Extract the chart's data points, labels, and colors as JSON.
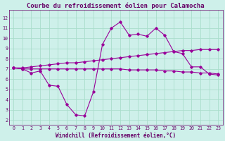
{
  "title": "Courbe du refroidissement éolien pour Calamocha",
  "xlabel": "Windchill (Refroidissement éolien,°C)",
  "bg_color": "#cef0ea",
  "grid_color": "#aaddcc",
  "line_color": "#990099",
  "x_ticks": [
    0,
    1,
    2,
    3,
    4,
    5,
    6,
    7,
    8,
    9,
    10,
    11,
    12,
    13,
    14,
    15,
    16,
    17,
    18,
    19,
    20,
    21,
    22,
    23
  ],
  "y_ticks": [
    2,
    3,
    4,
    5,
    6,
    7,
    8,
    9,
    10,
    11,
    12
  ],
  "ylim": [
    1.5,
    12.8
  ],
  "xlim": [
    -0.5,
    23.5
  ],
  "series1_x": [
    0,
    1,
    2,
    3,
    4,
    5,
    6,
    7,
    8,
    9,
    10,
    11,
    12,
    13,
    14,
    15,
    16,
    17,
    18,
    19,
    20,
    21,
    22,
    23
  ],
  "series1_y": [
    7.1,
    7.0,
    6.6,
    6.8,
    5.4,
    5.3,
    3.5,
    2.5,
    2.4,
    4.8,
    9.4,
    11.0,
    11.6,
    10.3,
    10.4,
    10.2,
    11.0,
    10.3,
    8.7,
    8.5,
    7.2,
    7.2,
    6.5,
    6.4
  ],
  "series2_x": [
    0,
    1,
    2,
    3,
    4,
    5,
    6,
    7,
    8,
    9,
    10,
    11,
    12,
    13,
    14,
    15,
    16,
    17,
    18,
    19,
    20,
    21,
    22,
    23
  ],
  "series2_y": [
    7.1,
    7.0,
    7.0,
    7.0,
    7.0,
    7.0,
    7.0,
    7.0,
    7.0,
    7.0,
    7.0,
    7.0,
    7.0,
    6.9,
    6.9,
    6.9,
    6.9,
    6.8,
    6.8,
    6.7,
    6.7,
    6.6,
    6.6,
    6.5
  ],
  "series3_x": [
    0,
    1,
    2,
    3,
    4,
    5,
    6,
    7,
    8,
    9,
    10,
    11,
    12,
    13,
    14,
    15,
    16,
    17,
    18,
    19,
    20,
    21,
    22,
    23
  ],
  "series3_y": [
    7.1,
    7.1,
    7.2,
    7.3,
    7.4,
    7.5,
    7.6,
    7.6,
    7.7,
    7.8,
    7.9,
    8.0,
    8.1,
    8.2,
    8.3,
    8.4,
    8.5,
    8.6,
    8.7,
    8.8,
    8.8,
    8.9,
    8.9,
    8.9
  ],
  "font_color": "#660066",
  "tick_fontsize": 4.8,
  "label_fontsize": 5.5,
  "title_fontsize": 6.5
}
